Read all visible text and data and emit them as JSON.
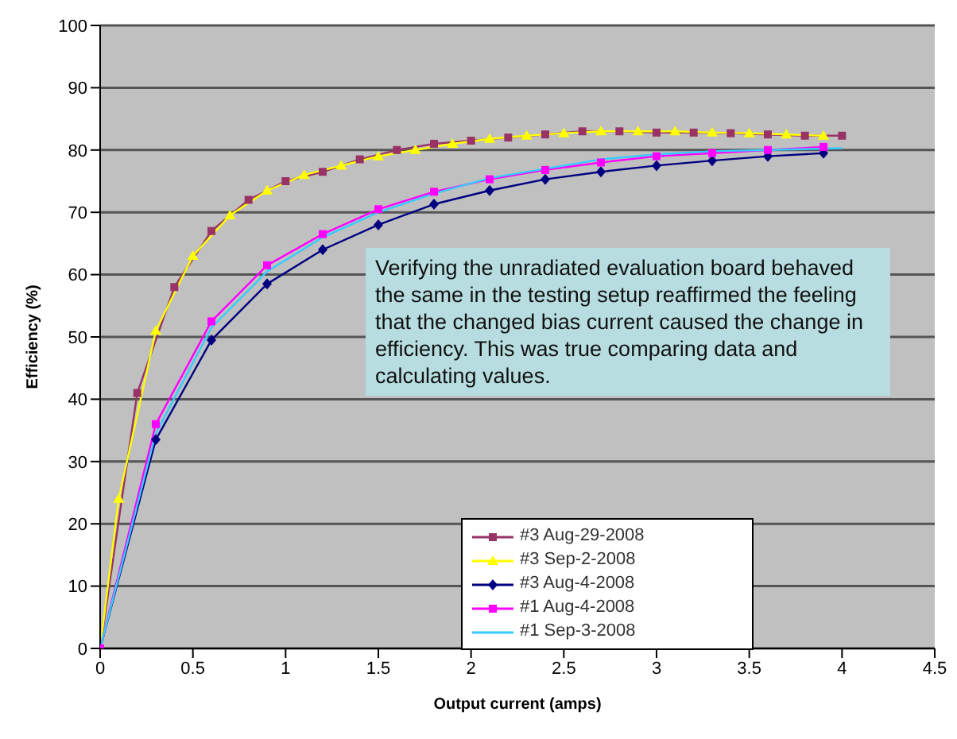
{
  "chart_data": {
    "type": "line",
    "xlabel": "Output current (amps)",
    "ylabel": "Efficiency (%)",
    "xlim": [
      0,
      4.5
    ],
    "xticks": [
      0,
      0.5,
      1,
      1.5,
      2,
      2.5,
      3,
      3.5,
      4,
      4.5
    ],
    "ylim": [
      0,
      100
    ],
    "yticks": [
      0,
      10,
      20,
      30,
      40,
      50,
      60,
      70,
      80,
      90,
      100
    ],
    "grid": "y",
    "legend": "bottom right",
    "line_style": "solid",
    "annotations": [
      "Verifying the unradiated evaluation board behaved the same in the testing setup reaffirmed the feeling that the changed bias current caused the change in efficiency. This was true comparing data and calculating values."
    ],
    "series": [
      {
        "name": "#3 Aug-29-2008",
        "color": "#993366",
        "marker": "square",
        "x": [
          0,
          0.2,
          0.4,
          0.6,
          0.8,
          1.0,
          1.2,
          1.4,
          1.6,
          1.8,
          2.0,
          2.2,
          2.4,
          2.6,
          2.8,
          3.0,
          3.2,
          3.4,
          3.6,
          3.8,
          4.0
        ],
        "values": [
          0,
          41,
          58,
          67,
          72,
          75,
          76.5,
          78.5,
          80,
          81,
          81.5,
          82,
          82.5,
          83,
          83,
          82.8,
          82.8,
          82.7,
          82.5,
          82.3,
          82.3
        ]
      },
      {
        "name": "#3 Sep-2-2008",
        "color": "#ffff00",
        "marker": "triangle",
        "x": [
          0,
          0.1,
          0.3,
          0.5,
          0.7,
          0.9,
          1.1,
          1.3,
          1.5,
          1.7,
          1.9,
          2.1,
          2.3,
          2.5,
          2.7,
          2.9,
          3.1,
          3.3,
          3.5,
          3.7,
          3.9
        ],
        "values": [
          0,
          24,
          51,
          63,
          69.5,
          73.5,
          76,
          77.5,
          79,
          80,
          81,
          81.8,
          82.3,
          82.7,
          83,
          83,
          83,
          82.8,
          82.7,
          82.5,
          82.3
        ]
      },
      {
        "name": "#3 Aug-4-2008",
        "color": "#000080",
        "marker": "diamond",
        "x": [
          0,
          0.3,
          0.6,
          0.9,
          1.2,
          1.5,
          1.8,
          2.1,
          2.4,
          2.7,
          3.0,
          3.3,
          3.6,
          3.9
        ],
        "values": [
          0,
          33.5,
          49.5,
          58.5,
          64,
          68,
          71.3,
          73.5,
          75.3,
          76.5,
          77.5,
          78.3,
          79,
          79.5
        ]
      },
      {
        "name": "#1 Aug-4-2008",
        "color": "#ff00ff",
        "marker": "square",
        "x": [
          0,
          0.3,
          0.6,
          0.9,
          1.2,
          1.5,
          1.8,
          2.1,
          2.4,
          2.7,
          3.0,
          3.3,
          3.6,
          3.9
        ],
        "values": [
          0,
          36,
          52.5,
          61.5,
          66.5,
          70.5,
          73.3,
          75.3,
          76.8,
          78,
          79,
          79.5,
          80,
          80.5
        ]
      },
      {
        "name": "#1 Sep-3-2008",
        "color": "#33ccff",
        "marker": "none",
        "x": [
          0,
          0.3,
          0.6,
          0.9,
          1.2,
          1.5,
          1.8,
          2.1,
          2.4,
          2.7,
          3.0,
          3.3,
          3.6,
          4.0
        ],
        "values": [
          0,
          34.5,
          51.5,
          60.5,
          66,
          70,
          73,
          75.5,
          77,
          78.5,
          79.3,
          79.8,
          80,
          80.3
        ]
      }
    ]
  }
}
